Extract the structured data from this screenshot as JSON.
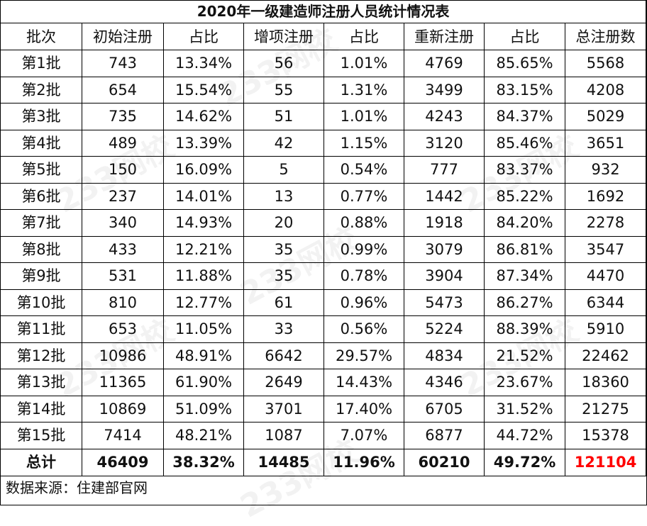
{
  "title": "2020年一级建造师注册人员统计情况表",
  "columns": [
    "批次",
    "初始注册",
    "占比",
    "增项注册",
    "占比",
    "重新注册",
    "占比",
    "总注册数"
  ],
  "rows": [
    [
      "第1批",
      "743",
      "13.34%",
      "56",
      "1.01%",
      "4769",
      "85.65%",
      "5568"
    ],
    [
      "第2批",
      "654",
      "15.54%",
      "55",
      "1.31%",
      "3499",
      "83.15%",
      "4208"
    ],
    [
      "第3批",
      "735",
      "14.62%",
      "51",
      "1.01%",
      "4243",
      "84.37%",
      "5029"
    ],
    [
      "第4批",
      "489",
      "13.39%",
      "42",
      "1.15%",
      "3120",
      "85.46%",
      "3651"
    ],
    [
      "第5批",
      "150",
      "16.09%",
      "5",
      "0.54%",
      "777",
      "83.37%",
      "932"
    ],
    [
      "第6批",
      "237",
      "14.01%",
      "13",
      "0.77%",
      "1442",
      "85.22%",
      "1692"
    ],
    [
      "第7批",
      "340",
      "14.93%",
      "20",
      "0.88%",
      "1918",
      "84.20%",
      "2278"
    ],
    [
      "第8批",
      "433",
      "12.21%",
      "35",
      "0.99%",
      "3079",
      "86.81%",
      "3547"
    ],
    [
      "第9批",
      "531",
      "11.88%",
      "35",
      "0.78%",
      "3904",
      "87.34%",
      "4470"
    ],
    [
      "第10批",
      "810",
      "12.77%",
      "61",
      "0.96%",
      "5473",
      "86.27%",
      "6344"
    ],
    [
      "第11批",
      "653",
      "11.05%",
      "33",
      "0.56%",
      "5224",
      "88.39%",
      "5910"
    ],
    [
      "第12批",
      "10986",
      "48.91%",
      "6642",
      "29.57%",
      "4834",
      "21.52%",
      "22462"
    ],
    [
      "第13批",
      "11365",
      "61.90%",
      "2649",
      "14.43%",
      "4346",
      "23.67%",
      "18360"
    ],
    [
      "第14批",
      "10869",
      "51.09%",
      "3701",
      "17.40%",
      "6705",
      "31.52%",
      "21275"
    ],
    [
      "第15批",
      "7414",
      "48.21%",
      "1087",
      "7.07%",
      "6877",
      "44.72%",
      "15378"
    ]
  ],
  "total": [
    "总计",
    "46409",
    "38.32%",
    "14485",
    "11.96%",
    "60210",
    "49.72%",
    "121104"
  ],
  "total_highlight_color": "#ff0000",
  "source": "数据来源：住建部官网",
  "watermark": "233网校"
}
